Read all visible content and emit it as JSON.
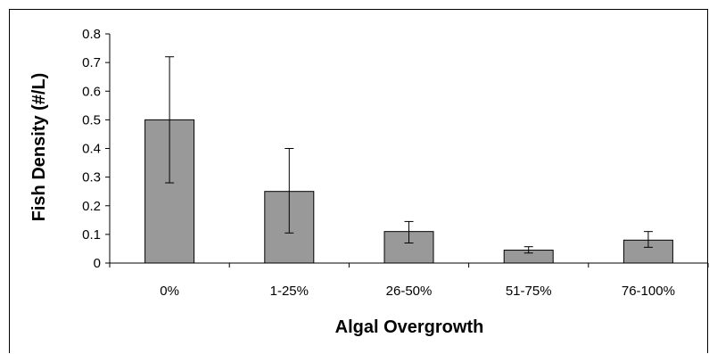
{
  "chart_data": {
    "type": "bar",
    "categories": [
      "0%",
      "1-25%",
      "26-50%",
      "51-75%",
      "76-100%"
    ],
    "values": [
      0.5,
      0.25,
      0.11,
      0.045,
      0.08
    ],
    "error_bars": [
      {
        "low": 0.28,
        "high": 0.72
      },
      {
        "low": 0.105,
        "high": 0.4
      },
      {
        "low": 0.07,
        "high": 0.145
      },
      {
        "low": 0.035,
        "high": 0.057
      },
      {
        "low": 0.055,
        "high": 0.11
      }
    ],
    "xlabel": "Algal Overgrowth",
    "ylabel": "Fish Density (#/L)",
    "ylim": [
      0,
      0.8
    ],
    "yticks": [
      "0",
      "0.1",
      "0.2",
      "0.3",
      "0.4",
      "0.5",
      "0.6",
      "0.7",
      "0.8"
    ],
    "grid": false,
    "bar_color": "#999999"
  }
}
